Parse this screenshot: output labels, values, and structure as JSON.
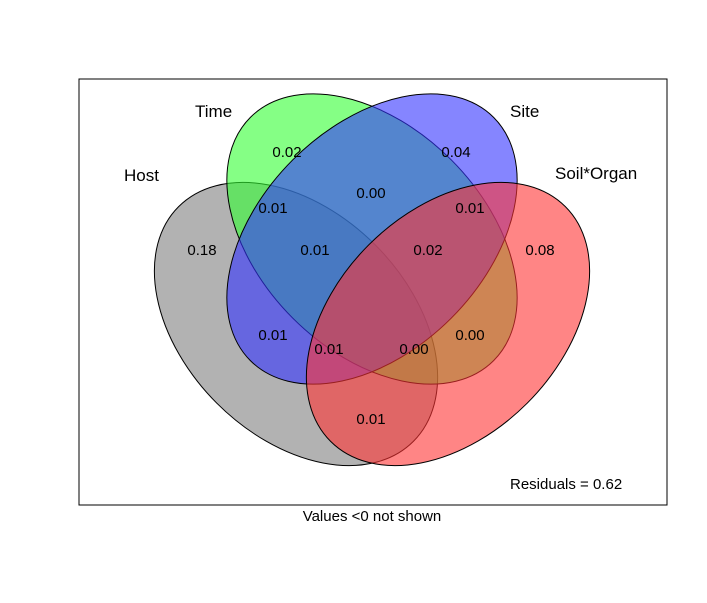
{
  "sets": [
    {
      "key": "host",
      "name": "Host",
      "color": "#7f7f7f"
    },
    {
      "key": "time",
      "name": "Time",
      "color": "#33ff33"
    },
    {
      "key": "site",
      "name": "Site",
      "color": "#3333ff"
    },
    {
      "key": "soil_organ",
      "name": "Soil*Organ",
      "color": "#ff3333"
    }
  ],
  "regions": [
    {
      "key": "host_only",
      "sets": [
        "Host"
      ],
      "value": "0.18"
    },
    {
      "key": "time_only",
      "sets": [
        "Time"
      ],
      "value": "0.02"
    },
    {
      "key": "site_only",
      "sets": [
        "Site"
      ],
      "value": "0.04"
    },
    {
      "key": "soil_organ_only",
      "sets": [
        "Soil*Organ"
      ],
      "value": "0.08"
    },
    {
      "key": "host_time",
      "sets": [
        "Host",
        "Time"
      ],
      "value": "0.01"
    },
    {
      "key": "time_site",
      "sets": [
        "Time",
        "Site"
      ],
      "value": "0.00"
    },
    {
      "key": "site_soil_organ",
      "sets": [
        "Site",
        "Soil*Organ"
      ],
      "value": "0.01"
    },
    {
      "key": "host_time_site",
      "sets": [
        "Host",
        "Time",
        "Site"
      ],
      "value": "0.01"
    },
    {
      "key": "time_site_soil_organ",
      "sets": [
        "Time",
        "Site",
        "Soil*Organ"
      ],
      "value": "0.02"
    },
    {
      "key": "host_site",
      "sets": [
        "Host",
        "Site"
      ],
      "value": "0.01"
    },
    {
      "key": "time_soil_organ",
      "sets": [
        "Time",
        "Soil*Organ"
      ],
      "value": "0.00"
    },
    {
      "key": "host_site_soil_organ",
      "sets": [
        "Host",
        "Site",
        "Soil*Organ"
      ],
      "value": "0.01"
    },
    {
      "key": "host_time_soil_organ",
      "sets": [
        "Host",
        "Time",
        "Soil*Organ"
      ],
      "value": "0.00"
    },
    {
      "key": "host_soil_organ",
      "sets": [
        "Host",
        "Soil*Organ"
      ],
      "value": "0.01"
    }
  ],
  "residuals_text": "Residuals = 0.62",
  "footnote": "Values <0 not shown"
}
